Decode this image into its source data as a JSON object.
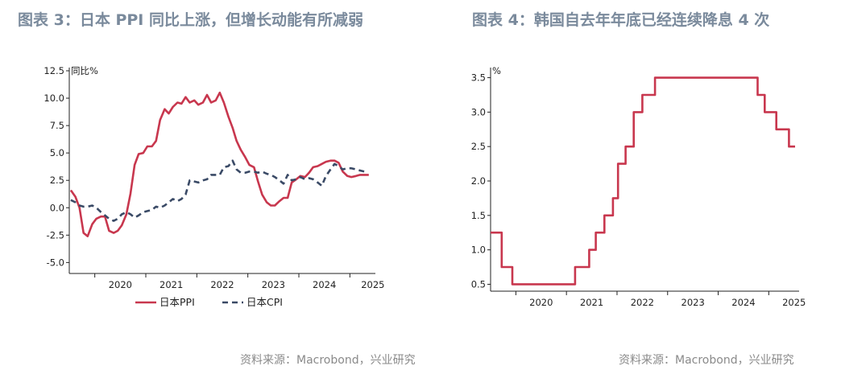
{
  "colors": {
    "ppi": "#c8374e",
    "cpi": "#3a4a66",
    "title": "#7a8a9c",
    "axis": "#222222"
  },
  "left": {
    "title": "图表 3：日本 PPI 同比上涨，但增长动能有所减弱",
    "source": "资料来源：Macrobond，兴业研究"
  },
  "right": {
    "title": "图表 4：韩国自去年年底已经连续降息 4 次",
    "source": "资料来源：Macrobond，兴业研究"
  },
  "chart_data": [
    {
      "type": "line",
      "unit_label": "同比%",
      "ylim": [
        -6,
        12.5
      ],
      "yticks": [
        "12.5",
        "10.0",
        "7.5",
        "5.0",
        "2.5",
        "0.0",
        "-2.5",
        "-5.0"
      ],
      "xlim": [
        2019.5,
        2025.5
      ],
      "xticks": [
        "2020",
        "2021",
        "2022",
        "2023",
        "2024",
        "2025"
      ],
      "grid": false,
      "legend_position": "bottom",
      "series": [
        {
          "name": "日本PPI",
          "style": "solid",
          "x": [
            2019.53,
            2019.62,
            2019.7,
            2019.78,
            2019.86,
            2019.95,
            2020.03,
            2020.12,
            2020.2,
            2020.28,
            2020.37,
            2020.45,
            2020.53,
            2020.62,
            2020.7,
            2020.78,
            2020.86,
            2020.95,
            2021.03,
            2021.12,
            2021.2,
            2021.28,
            2021.37,
            2021.45,
            2021.53,
            2021.62,
            2021.7,
            2021.78,
            2021.86,
            2021.95,
            2022.03,
            2022.12,
            2022.2,
            2022.28,
            2022.37,
            2022.45,
            2022.53,
            2022.62,
            2022.7,
            2022.78,
            2022.86,
            2022.95,
            2023.03,
            2023.12,
            2023.2,
            2023.28,
            2023.37,
            2023.45,
            2023.53,
            2023.62,
            2023.7,
            2023.78,
            2023.86,
            2023.95,
            2024.03,
            2024.12,
            2024.2,
            2024.28,
            2024.37,
            2024.45,
            2024.53,
            2024.62,
            2024.7,
            2024.78,
            2024.86,
            2024.95,
            2025.03,
            2025.12,
            2025.2,
            2025.28,
            2025.37
          ],
          "y": [
            1.6,
            1.0,
            0.0,
            -2.3,
            -2.6,
            -1.5,
            -1.0,
            -0.8,
            -0.8,
            -2.1,
            -2.3,
            -2.1,
            -1.6,
            -0.6,
            1.3,
            3.9,
            4.9,
            5.0,
            5.6,
            5.6,
            6.1,
            8.0,
            9.0,
            8.6,
            9.2,
            9.6,
            9.5,
            10.1,
            9.6,
            9.8,
            9.4,
            9.6,
            10.3,
            9.6,
            9.8,
            10.5,
            9.6,
            8.3,
            7.3,
            6.1,
            5.3,
            4.6,
            3.9,
            3.7,
            2.4,
            1.2,
            0.5,
            0.2,
            0.2,
            0.6,
            0.9,
            0.9,
            2.3,
            2.6,
            2.9,
            2.8,
            3.2,
            3.7,
            3.8,
            4.0,
            4.2,
            4.3,
            4.3,
            4.1,
            3.3,
            2.9,
            2.8,
            2.9,
            3.0,
            3.0,
            3.0
          ]
        },
        {
          "name": "日本CPI",
          "style": "dashed",
          "x": [
            2019.53,
            2019.62,
            2019.7,
            2019.78,
            2019.86,
            2019.95,
            2020.03,
            2020.12,
            2020.2,
            2020.28,
            2020.37,
            2020.45,
            2020.53,
            2020.62,
            2020.7,
            2020.78,
            2020.86,
            2020.95,
            2021.03,
            2021.12,
            2021.2,
            2021.28,
            2021.37,
            2021.45,
            2021.53,
            2021.62,
            2021.7,
            2021.78,
            2021.86,
            2021.95,
            2022.03,
            2022.12,
            2022.2,
            2022.28,
            2022.37,
            2022.45,
            2022.53,
            2022.62,
            2022.7,
            2022.78,
            2022.86,
            2022.95,
            2023.03,
            2023.12,
            2023.2,
            2023.28,
            2023.37,
            2023.45,
            2023.53,
            2023.62,
            2023.7,
            2023.78,
            2023.86,
            2023.95,
            2024.03,
            2024.12,
            2024.2,
            2024.28,
            2024.37,
            2024.45,
            2024.53,
            2024.62,
            2024.7,
            2024.78,
            2024.86,
            2024.95,
            2025.03,
            2025.12,
            2025.2,
            2025.28
          ],
          "y": [
            0.7,
            0.5,
            0.2,
            0.1,
            0.1,
            0.2,
            0.0,
            -0.4,
            -0.7,
            -1.0,
            -1.2,
            -1.0,
            -0.6,
            -0.4,
            -0.6,
            -0.9,
            -0.7,
            -0.4,
            -0.3,
            -0.2,
            0.1,
            0.0,
            0.2,
            0.5,
            0.8,
            0.6,
            0.8,
            1.2,
            2.5,
            2.4,
            2.3,
            2.5,
            2.6,
            3.0,
            3.0,
            3.0,
            3.7,
            3.8,
            4.3,
            3.5,
            3.2,
            3.2,
            3.3,
            3.3,
            3.2,
            3.3,
            3.1,
            3.0,
            2.8,
            2.5,
            2.2,
            3.0,
            2.5,
            2.6,
            2.8,
            2.6,
            2.7,
            2.6,
            2.3,
            2.0,
            2.9,
            3.5,
            4.0,
            3.8,
            3.5,
            3.6,
            3.6,
            3.5,
            3.4,
            3.3
          ]
        }
      ]
    },
    {
      "type": "line",
      "unit_label": "%",
      "ylim": [
        0.4,
        3.6
      ],
      "yticks": [
        "3.5",
        "3.0",
        "2.5",
        "2.0",
        "1.5",
        "1.0",
        "0.5"
      ],
      "xlim": [
        2019.5,
        2025.6
      ],
      "xticks": [
        "2020",
        "2021",
        "2022",
        "2023",
        "2024",
        "2025"
      ],
      "grid": false,
      "series": [
        {
          "name": "",
          "style": "step",
          "x": [
            2019.5,
            2019.72,
            2019.93,
            2021.17,
            2021.45,
            2021.58,
            2021.75,
            2021.92,
            2022.02,
            2022.17,
            2022.33,
            2022.5,
            2022.75,
            2022.9,
            2023.03,
            2024.78,
            2024.92,
            2025.15,
            2025.4,
            2025.52
          ],
          "y": [
            1.25,
            0.75,
            0.5,
            0.75,
            1.0,
            1.25,
            1.5,
            1.75,
            2.25,
            2.5,
            3.0,
            3.25,
            3.5,
            3.5,
            3.5,
            3.25,
            3.0,
            2.75,
            2.5,
            2.5
          ]
        }
      ]
    }
  ]
}
